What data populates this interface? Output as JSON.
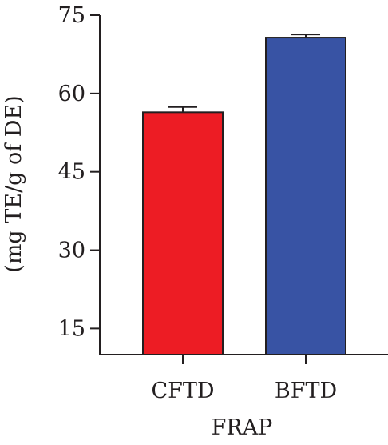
{
  "chart_data": {
    "type": "bar",
    "title": "",
    "xlabel": "FRAP",
    "ylabel": "(mg TE/g of DE)",
    "categories": [
      "CFTD",
      "BFTD"
    ],
    "values": [
      56.4,
      70.7
    ],
    "errors": [
      1.0,
      0.6
    ],
    "colors": [
      "#ed1c24",
      "#3853a4"
    ],
    "ylim": [
      10,
      75
    ],
    "yticks": [
      15,
      30,
      45,
      60,
      75
    ],
    "grid": false
  }
}
